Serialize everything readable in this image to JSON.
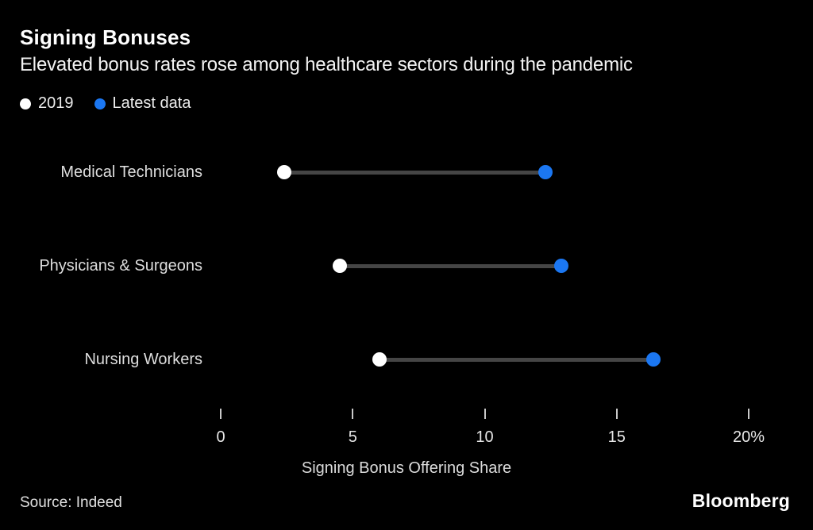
{
  "header": {
    "title": "Signing Bonuses",
    "subtitle": "Elevated bonus rates rose among healthcare sectors during the pandemic"
  },
  "legend": [
    {
      "label": "2019",
      "color": "#ffffff"
    },
    {
      "label": "Latest data",
      "color": "#1b77f2"
    }
  ],
  "chart_data": {
    "type": "scatter",
    "variant": "dumbbell",
    "title": "Signing Bonuses",
    "subtitle": "Elevated bonus rates rose among healthcare sectors during the pandemic",
    "categories": [
      "Medical Technicians",
      "Physicians & Surgeons",
      "Nursing Workers"
    ],
    "series": [
      {
        "name": "2019",
        "color": "#ffffff",
        "values": [
          2.4,
          4.5,
          6.0
        ]
      },
      {
        "name": "Latest data",
        "color": "#1b77f2",
        "values": [
          12.3,
          12.9,
          16.4
        ]
      }
    ],
    "xlabel": "Signing Bonus Offering Share",
    "ylabel": "",
    "xlim": [
      0,
      20
    ],
    "xticks": [
      0,
      5,
      10,
      15,
      20
    ],
    "xtick_labels": [
      "0",
      "5",
      "10",
      "15",
      "20%"
    ],
    "grid": false,
    "legend_position": "top-left",
    "units": "percent"
  },
  "footer": {
    "source": "Source: Indeed",
    "brand": "Bloomberg"
  },
  "colors": {
    "background": "#000000",
    "accent_blue": "#1b77f2",
    "connector_line": "#454545",
    "tick_mark": "#c9c9c9",
    "text_primary": "#ffffff",
    "text_secondary": "#dedede"
  }
}
